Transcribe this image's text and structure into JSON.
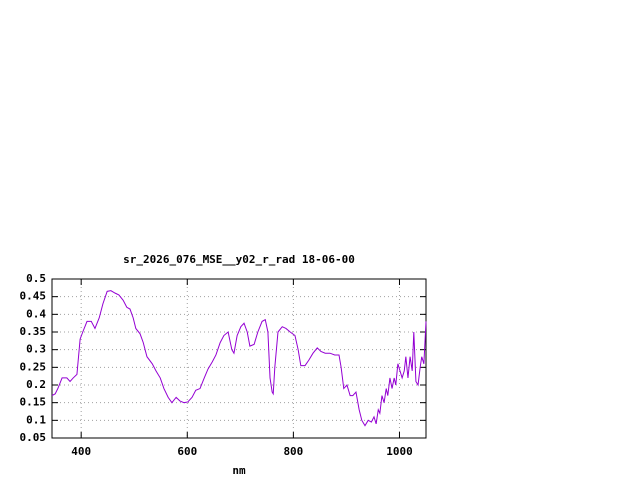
{
  "chart_data": {
    "type": "line",
    "title": "sr_2026_076_MSE__y02_r_rad 18-06-00",
    "x_label": "nm",
    "color": "#9400d3",
    "grid": true,
    "xlim": [
      345,
      1050
    ],
    "ylim": [
      0.05,
      0.5
    ],
    "xticks": [
      400,
      600,
      800,
      1000
    ],
    "yticks": [
      0.05,
      0.1,
      0.15,
      0.2,
      0.25,
      0.3,
      0.35,
      0.4,
      0.45,
      0.5
    ],
    "x": [
      345,
      351,
      356,
      364,
      373,
      379,
      385,
      392,
      398,
      403,
      411,
      419,
      426,
      434,
      441,
      449,
      456,
      464,
      471,
      479,
      486,
      492,
      498,
      503,
      511,
      517,
      524,
      534,
      541,
      549,
      556,
      564,
      571,
      579,
      586,
      594,
      601,
      609,
      616,
      624,
      632,
      639,
      647,
      654,
      662,
      669,
      677,
      684,
      688,
      694,
      701,
      707,
      713,
      718,
      726,
      733,
      741,
      747,
      752,
      756,
      760,
      762,
      765,
      771,
      779,
      786,
      794,
      803,
      809,
      814,
      822,
      829,
      837,
      845,
      852,
      860,
      869,
      878,
      886,
      890,
      895,
      901,
      907,
      912,
      918,
      924,
      929,
      935,
      941,
      947,
      952,
      956,
      960,
      963,
      967,
      971,
      975,
      978,
      982,
      986,
      990,
      993,
      997,
      1001,
      1005,
      1009,
      1012,
      1016,
      1020,
      1024,
      1027,
      1031,
      1035,
      1039,
      1042,
      1046,
      1050
    ],
    "values": [
      0.17,
      0.175,
      0.19,
      0.22,
      0.22,
      0.21,
      0.22,
      0.23,
      0.33,
      0.35,
      0.38,
      0.38,
      0.36,
      0.39,
      0.43,
      0.465,
      0.467,
      0.46,
      0.455,
      0.44,
      0.42,
      0.415,
      0.39,
      0.36,
      0.345,
      0.32,
      0.28,
      0.26,
      0.24,
      0.22,
      0.19,
      0.165,
      0.15,
      0.165,
      0.155,
      0.15,
      0.152,
      0.165,
      0.185,
      0.19,
      0.22,
      0.245,
      0.265,
      0.285,
      0.32,
      0.34,
      0.35,
      0.3,
      0.29,
      0.34,
      0.365,
      0.375,
      0.35,
      0.31,
      0.315,
      0.35,
      0.38,
      0.385,
      0.35,
      0.22,
      0.18,
      0.175,
      0.25,
      0.35,
      0.365,
      0.36,
      0.35,
      0.34,
      0.3,
      0.255,
      0.255,
      0.27,
      0.29,
      0.305,
      0.295,
      0.29,
      0.29,
      0.285,
      0.285,
      0.25,
      0.19,
      0.2,
      0.17,
      0.17,
      0.18,
      0.13,
      0.1,
      0.085,
      0.1,
      0.095,
      0.11,
      0.09,
      0.13,
      0.12,
      0.17,
      0.15,
      0.19,
      0.17,
      0.22,
      0.19,
      0.22,
      0.2,
      0.26,
      0.24,
      0.22,
      0.24,
      0.28,
      0.22,
      0.28,
      0.24,
      0.35,
      0.21,
      0.2,
      0.25,
      0.28,
      0.26,
      0.38
    ]
  }
}
